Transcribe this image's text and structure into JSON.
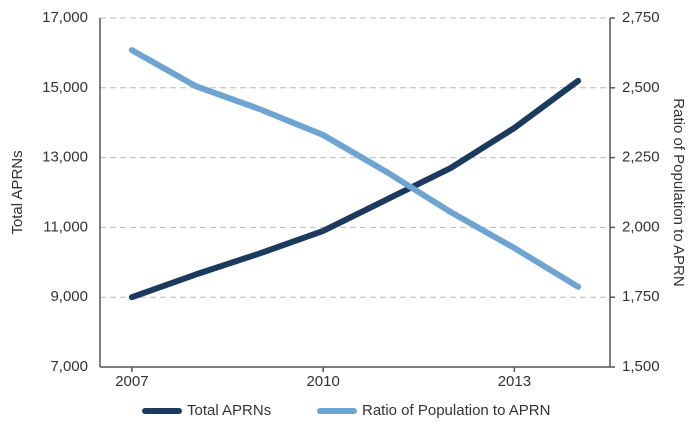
{
  "chart_data": {
    "type": "line",
    "x": [
      2007,
      2008,
      2009,
      2010,
      2011,
      2012,
      2013,
      2014
    ],
    "xlim": [
      2006.5,
      2014.5
    ],
    "xticks": [
      2007,
      2010,
      2013
    ],
    "ylabel": "Total APRNs",
    "y2label": "Ratio of Population to APRN",
    "ylim": [
      7000,
      17000
    ],
    "yticks": [
      {
        "value": 7000,
        "label": "7,000"
      },
      {
        "value": 9000,
        "label": "9,000"
      },
      {
        "value": 11000,
        "label": "11,000"
      },
      {
        "value": 13000,
        "label": "13,000"
      },
      {
        "value": 15000,
        "label": "15,000"
      },
      {
        "value": 17000,
        "label": "17,000"
      }
    ],
    "y2lim": [
      1500,
      2750
    ],
    "y2ticks": [
      {
        "value": 1500,
        "label": "1,500"
      },
      {
        "value": 1750,
        "label": "1,750"
      },
      {
        "value": 2000,
        "label": "2,000"
      },
      {
        "value": 2250,
        "label": "2,250"
      },
      {
        "value": 2500,
        "label": "2,500"
      },
      {
        "value": 2750,
        "label": "2,750"
      }
    ],
    "grid": true,
    "legend": "bottom",
    "series": [
      {
        "name": "Total APRNs",
        "color": "#1b3a5e",
        "values": [
          9000,
          9650,
          10250,
          10900,
          11800,
          12700,
          13850,
          15200
        ]
      },
      {
        "name": "Ratio of Population to APRN",
        "color": "#6fa3d2",
        "axis": "y2",
        "values": [
          2635,
          2506,
          2424,
          2331,
          2198,
          2055,
          1926,
          1787
        ]
      }
    ]
  }
}
